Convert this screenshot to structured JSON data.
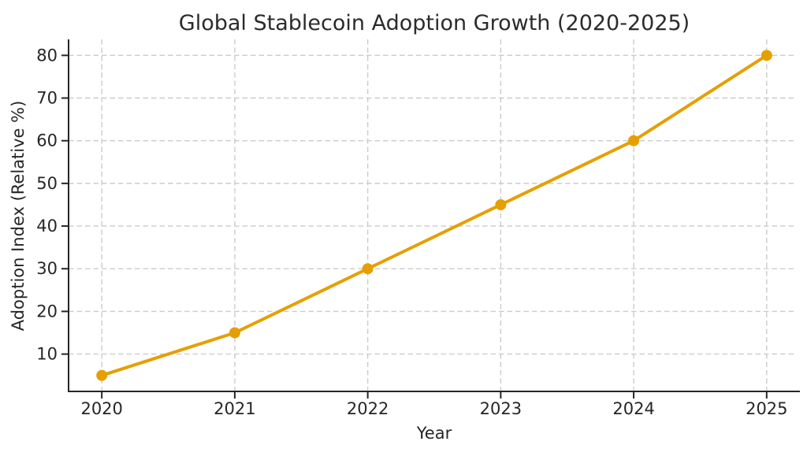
{
  "chart_data": {
    "type": "line",
    "title": "Global Stablecoin Adoption Growth (2020-2025)",
    "xlabel": "Year",
    "ylabel": "Adoption Index (Relative %)",
    "x": [
      2020,
      2021,
      2022,
      2023,
      2024,
      2025
    ],
    "series": [
      {
        "values": [
          5,
          15,
          30,
          45,
          60,
          80
        ],
        "color": "#E69F00",
        "marker": "circle",
        "line_width": 4,
        "marker_radius": 7
      }
    ],
    "xticks": [
      "2020",
      "2021",
      "2022",
      "2023",
      "2024",
      "2025"
    ],
    "xtick_values": [
      2020,
      2021,
      2022,
      2023,
      2024,
      2025
    ],
    "yticks": [
      "10",
      "20",
      "30",
      "40",
      "50",
      "60",
      "70",
      "80"
    ],
    "ytick_values": [
      10,
      20,
      30,
      40,
      50,
      60,
      70,
      80
    ],
    "xlim": [
      2019.75,
      2025.25
    ],
    "ylim": [
      1.25,
      83.75
    ],
    "grid": true,
    "grid_style": "dashed",
    "legend": "none",
    "colors": {
      "line": "#E69F00",
      "grid": "#CBCBCB",
      "spine": "#262626",
      "tick": "#262626",
      "text": "#262626",
      "background": "#FFFFFF"
    }
  }
}
